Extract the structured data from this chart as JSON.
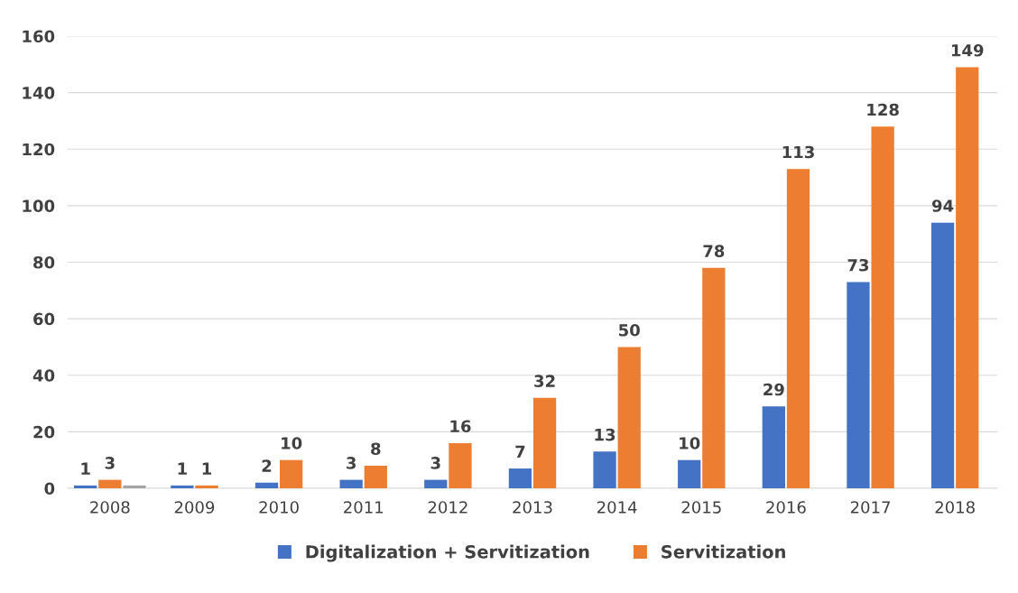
{
  "chart_data": {
    "type": "bar",
    "categories": [
      "2008",
      "2009",
      "2010",
      "2011",
      "2012",
      "2013",
      "2014",
      "2015",
      "2016",
      "2017",
      "2018"
    ],
    "series": [
      {
        "name": "Digitalization + Servitization",
        "color": "#4472c4",
        "values": [
          1,
          1,
          2,
          3,
          3,
          7,
          13,
          10,
          29,
          73,
          94
        ],
        "value_labels": [
          "1",
          "1",
          "2",
          "3",
          "3",
          "7",
          "13",
          "10",
          "29",
          "73",
          "94"
        ]
      },
      {
        "name": "Servitization",
        "color": "#ed7d31",
        "values": [
          3,
          1,
          10,
          8,
          16,
          32,
          50,
          78,
          113,
          128,
          149
        ],
        "value_labels": [
          "3",
          "1",
          "10",
          "8",
          "16",
          "32",
          "50",
          "78",
          "113",
          "128",
          "149"
        ]
      },
      {
        "color": "#a5a5a5",
        "values": [
          1,
          null,
          null,
          null,
          null,
          null,
          null,
          null,
          null,
          null,
          null
        ]
      }
    ],
    "ylim": [
      0,
      160
    ],
    "yticks": [
      0,
      20,
      40,
      60,
      80,
      100,
      120,
      140,
      160
    ],
    "grid": "y",
    "legend": "bottom"
  }
}
